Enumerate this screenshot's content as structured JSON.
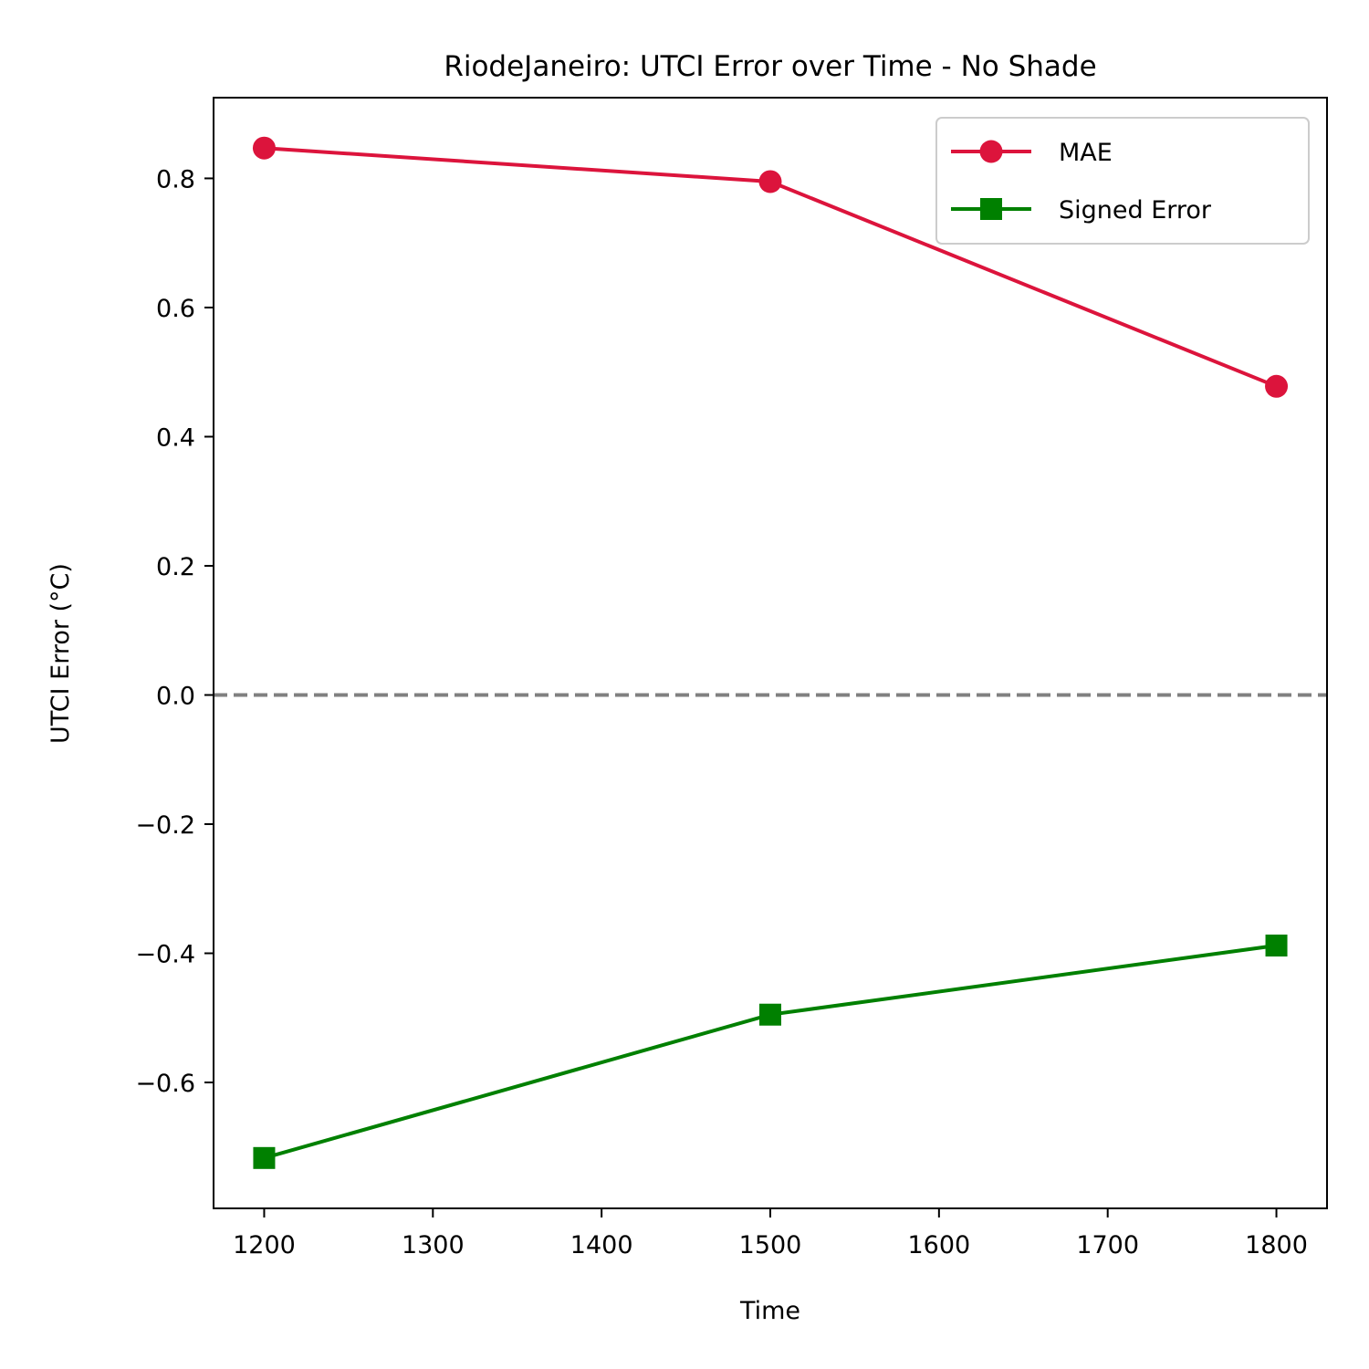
{
  "chart_data": {
    "type": "line",
    "title": "RiodeJaneiro: UTCI Error over Time - No Shade",
    "xlabel": "Time",
    "ylabel": "UTCI Error (°C)",
    "x": [
      1200,
      1500,
      1800
    ],
    "xlim": [
      1170,
      1830
    ],
    "ylim": [
      -0.795,
      0.925
    ],
    "xticks": [
      1200,
      1300,
      1400,
      1500,
      1600,
      1700,
      1800
    ],
    "xtick_labels": [
      "1200",
      "1300",
      "1400",
      "1500",
      "1600",
      "1700",
      "1800"
    ],
    "yticks": [
      -0.6,
      -0.4,
      -0.2,
      0.0,
      0.2,
      0.4,
      0.6,
      0.8
    ],
    "ytick_labels": [
      "−0.6",
      "−0.4",
      "−0.2",
      "0.0",
      "0.2",
      "0.4",
      "0.6",
      "0.8"
    ],
    "grid": false,
    "legend_position": "top-right",
    "reference_line": {
      "y": 0.0,
      "style": "dashed",
      "color": "#808080"
    },
    "series": [
      {
        "name": "MAE",
        "values": [
          0.847,
          0.795,
          0.478
        ],
        "color": "#dc143c",
        "marker": "circle"
      },
      {
        "name": "Signed Error",
        "values": [
          -0.717,
          -0.495,
          -0.388
        ],
        "color": "#008000",
        "marker": "square"
      }
    ]
  }
}
